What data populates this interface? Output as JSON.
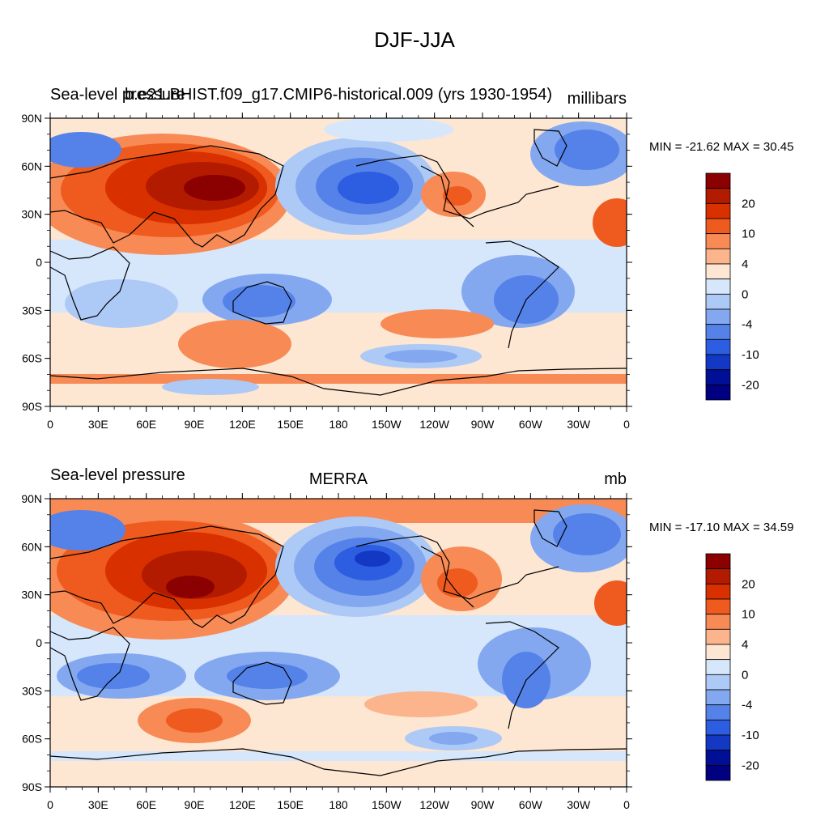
{
  "figure": {
    "title": "DJF-JJA"
  },
  "panels": [
    {
      "id": "model",
      "left_title": "Sea-level pressure",
      "center_title": "b.e21.BHIST.f09_g17.CMIP6-historical.009 (yrs 1930-1954)",
      "right_title": "millibars",
      "stats": "MIN = -21.62 MAX =  30.45"
    },
    {
      "id": "obs",
      "left_title": "Sea-level pressure",
      "center_title": "MERRA",
      "right_title": "mb",
      "stats": "MIN = -17.10 MAX =  34.59"
    }
  ],
  "axes": {
    "lat_labels": [
      "90N",
      "60N",
      "30N",
      "0",
      "30S",
      "60S",
      "90S"
    ],
    "lon_labels": [
      "0",
      "30E",
      "60E",
      "90E",
      "120E",
      "150E",
      "180",
      "150W",
      "120W",
      "90W",
      "60W",
      "30W",
      "0"
    ]
  },
  "colorbar": {
    "labels": [
      "20",
      "10",
      "4",
      "0",
      "-4",
      "-10",
      "-20"
    ],
    "colors": [
      "#8b0000",
      "#b31b00",
      "#d93000",
      "#ef5a1e",
      "#f88a55",
      "#fbb48c",
      "#fde6d2",
      "#d6e6fb",
      "#adc9f6",
      "#83a8f0",
      "#5482e8",
      "#2d5de0",
      "#1238c4",
      "#000f96",
      "#000080"
    ]
  }
}
